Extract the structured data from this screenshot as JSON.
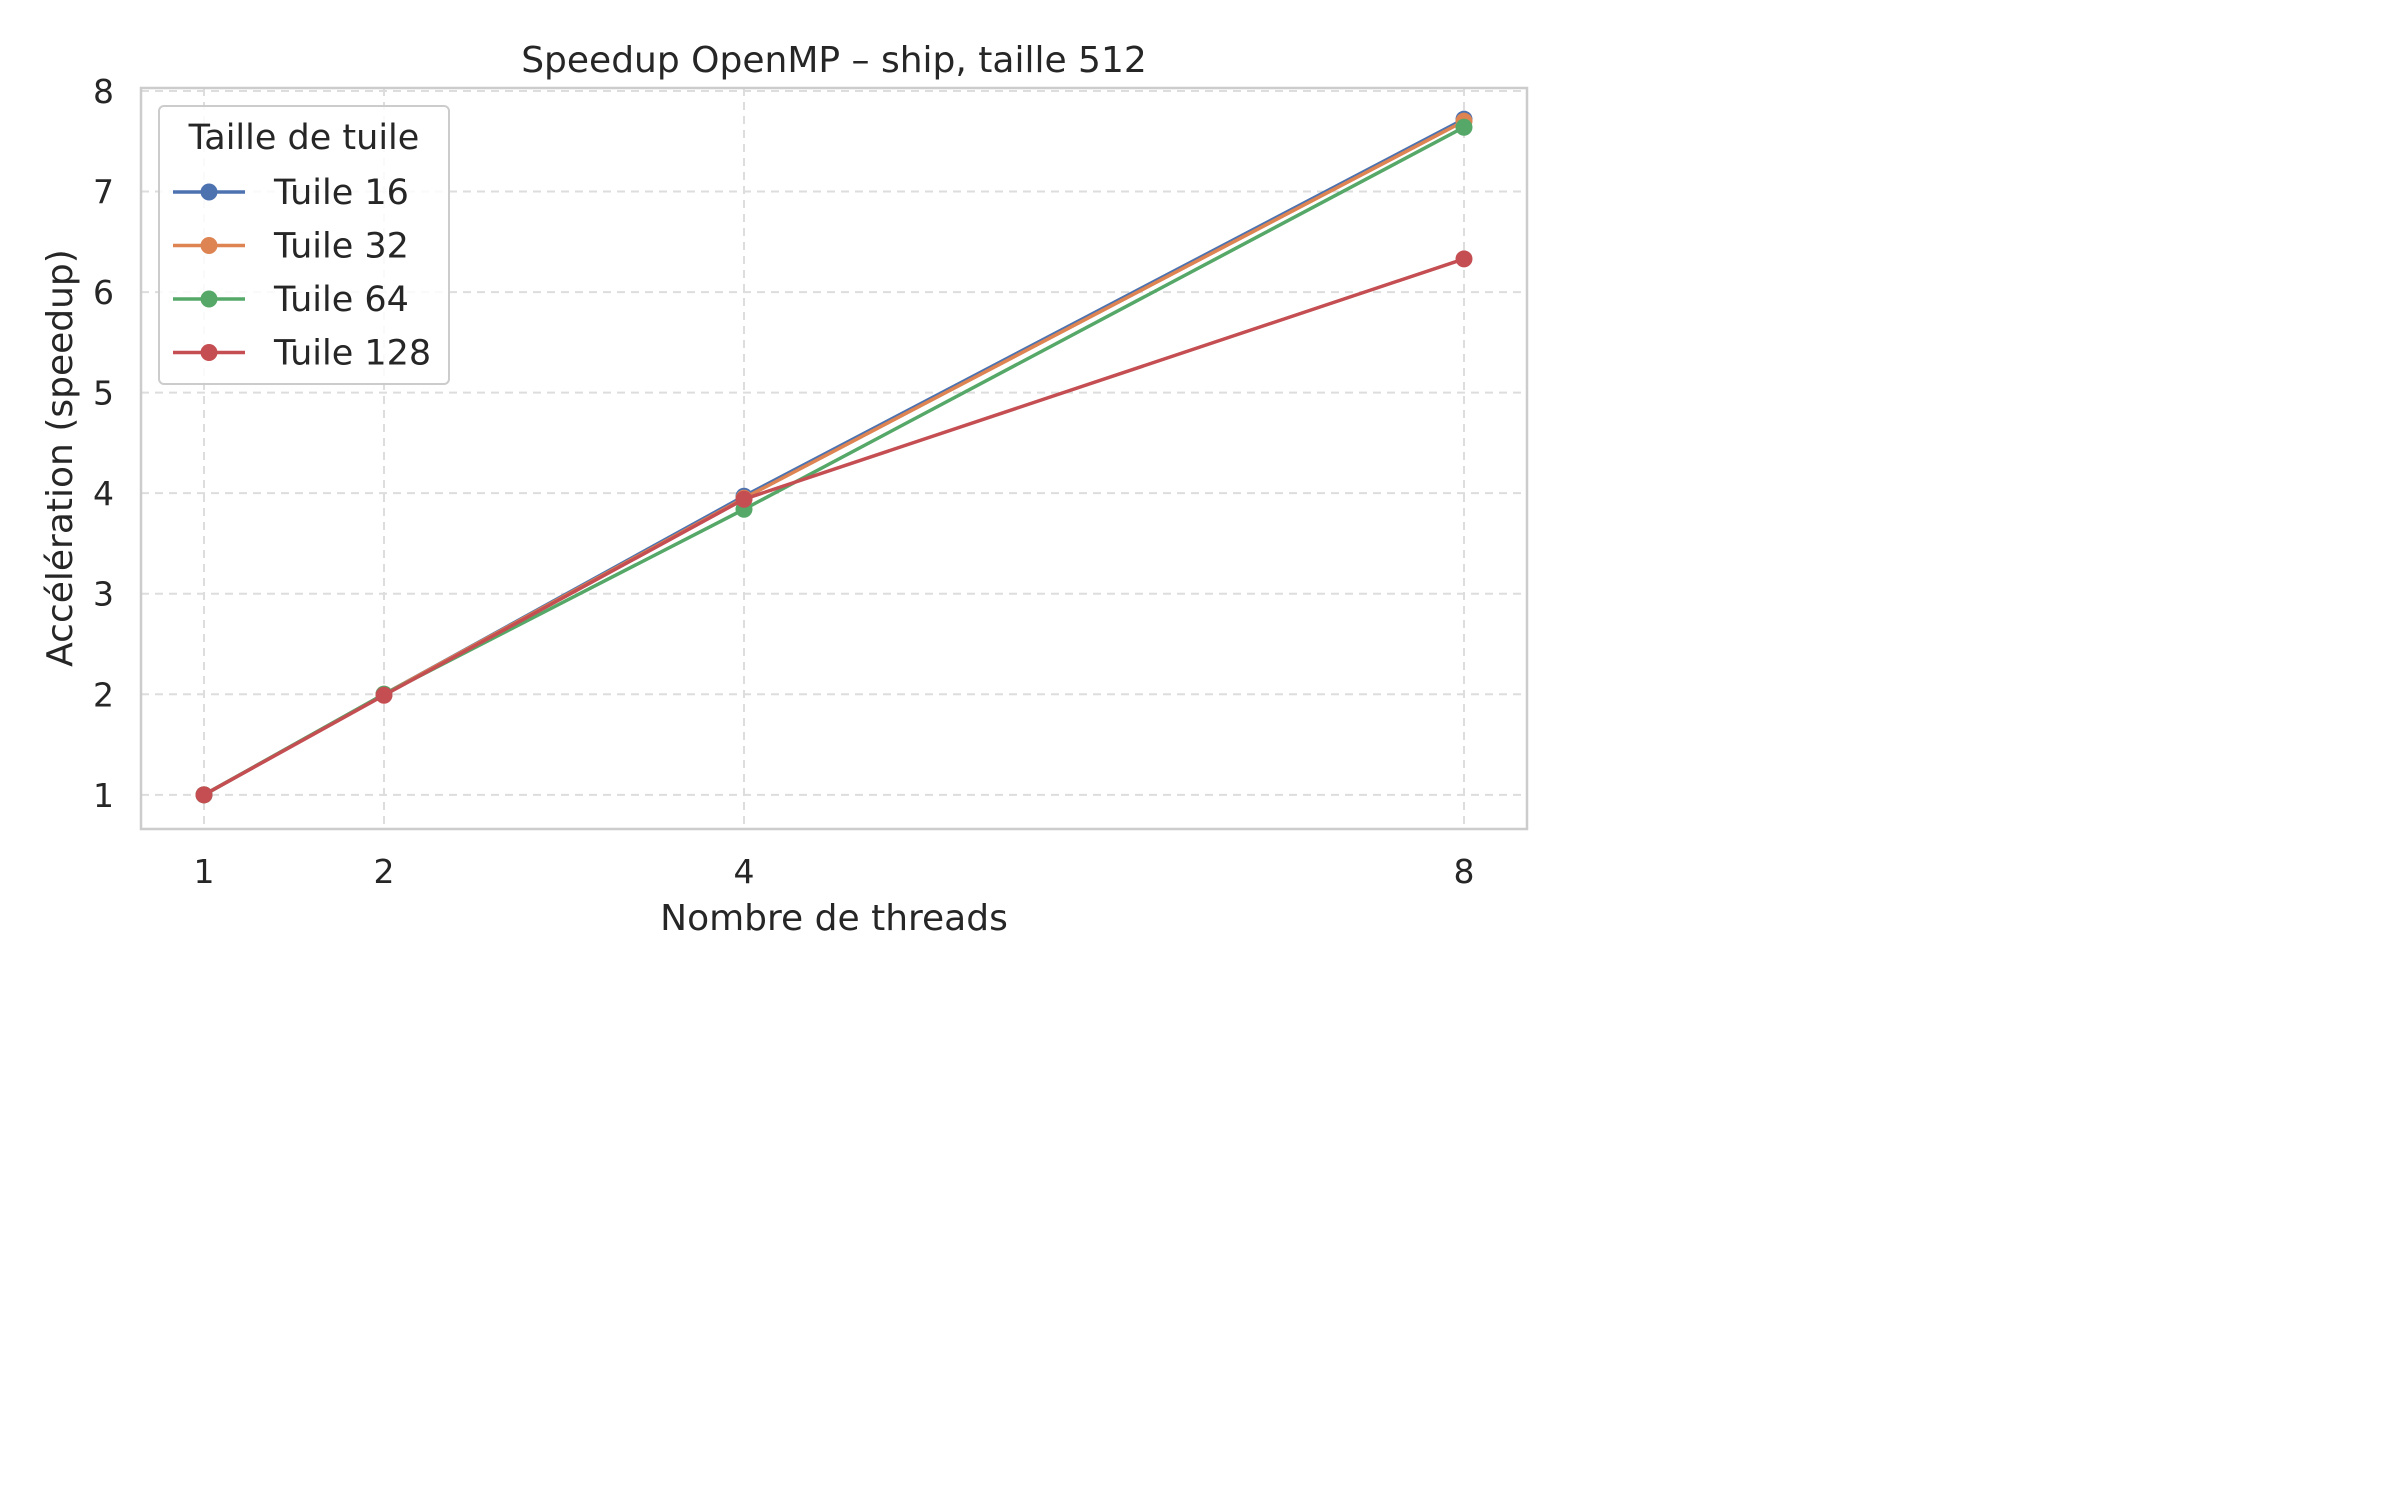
{
  "chart_data": {
    "type": "line",
    "title": "Speedup OpenMP – ship, taille 512",
    "xlabel": "Nombre de threads",
    "ylabel": "Accélération (speedup)",
    "x": [
      1,
      2,
      4,
      8
    ],
    "x_tick_labels": [
      "1",
      "2",
      "4",
      "8"
    ],
    "y_ticks": [
      1,
      2,
      3,
      4,
      5,
      6,
      7,
      8
    ],
    "y_tick_labels": [
      "1",
      "2",
      "3",
      "4",
      "5",
      "6",
      "7",
      "8"
    ],
    "xlim": [
      0.65,
      8.35
    ],
    "ylim": [
      0.66,
      8.03
    ],
    "grid": true,
    "legend": {
      "title": "Taille de tuile",
      "placement": "top-left"
    },
    "series": [
      {
        "name": "Tuile 16",
        "color": "#4c72b0",
        "values": [
          1.0,
          2.0,
          3.97,
          7.72
        ]
      },
      {
        "name": "Tuile 32",
        "color": "#dd8452",
        "values": [
          1.0,
          2.0,
          3.95,
          7.7
        ]
      },
      {
        "name": "Tuile 64",
        "color": "#55a868",
        "values": [
          1.0,
          2.0,
          3.84,
          7.64
        ]
      },
      {
        "name": "Tuile 128",
        "color": "#c44e52",
        "values": [
          1.0,
          1.99,
          3.94,
          6.33
        ]
      }
    ]
  }
}
